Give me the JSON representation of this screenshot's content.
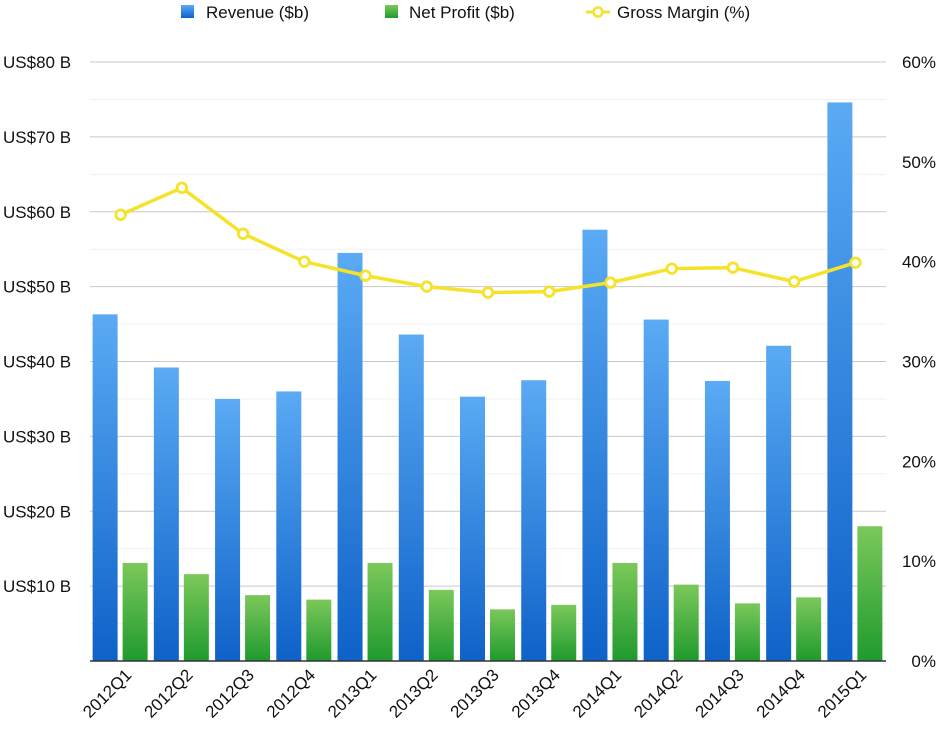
{
  "chart_data": {
    "type": "bar",
    "title": "",
    "xlabel": "",
    "ylabel": "",
    "categories": [
      "2012Q1",
      "2012Q2",
      "2012Q3",
      "2012Q4",
      "2013Q1",
      "2013Q2",
      "2013Q3",
      "2013Q4",
      "2014Q1",
      "2014Q2",
      "2014Q3",
      "2014Q4",
      "2015Q1"
    ],
    "series": [
      {
        "name": "Revenue ($b)",
        "type": "bar",
        "axis": "left",
        "color": "#2f86e6",
        "values": [
          46.3,
          39.2,
          35.0,
          36.0,
          54.5,
          43.6,
          35.3,
          37.5,
          57.6,
          45.6,
          37.4,
          42.1,
          74.6
        ]
      },
      {
        "name": "Net Profit ($b)",
        "type": "bar",
        "axis": "left",
        "color": "#3fae3a",
        "values": [
          13.1,
          11.6,
          8.8,
          8.2,
          13.1,
          9.5,
          6.9,
          7.5,
          13.1,
          10.2,
          7.7,
          8.5,
          18.0
        ]
      },
      {
        "name": "Gross Margin (%)",
        "type": "line",
        "axis": "right",
        "color": "#f5e22a",
        "values": [
          44.7,
          47.4,
          42.8,
          40.0,
          38.6,
          37.5,
          36.9,
          37.0,
          37.9,
          39.3,
          39.4,
          38.0,
          39.9
        ]
      }
    ],
    "y_left": {
      "lim": [
        0,
        80
      ],
      "ticks": [
        10,
        20,
        30,
        40,
        50,
        60,
        70,
        80
      ],
      "tick_labels": [
        "US$10 B",
        "US$20 B",
        "US$30 B",
        "US$40 B",
        "US$50 B",
        "US$60 B",
        "US$70 B",
        "US$80 B"
      ]
    },
    "y_right": {
      "lim": [
        0,
        60
      ],
      "ticks": [
        0,
        10,
        20,
        30,
        40,
        50,
        60
      ],
      "tick_labels": [
        "0%",
        "10%",
        "20%",
        "30%",
        "40%",
        "50%",
        "60%"
      ]
    },
    "grid": true,
    "legend_position": "top"
  }
}
